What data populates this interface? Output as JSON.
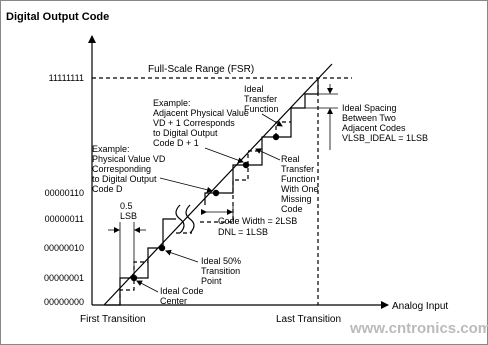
{
  "axis": {
    "y_title": "Digital Output Code",
    "x_title": "Analog Input",
    "y_codes": [
      "11111111",
      "00000110",
      "00000011",
      "00000010",
      "00000001",
      "00000000"
    ],
    "first_transition": "First Transition",
    "last_transition": "Last Transition"
  },
  "annotations": {
    "fsr": "Full-Scale Range (FSR)",
    "half_lsb": [
      "0.5",
      "LSB"
    ],
    "example_vd": [
      "Example:",
      "Physical Value VD",
      "Corresponding",
      "to Digital Output",
      "Code D"
    ],
    "example_vd1": [
      "Example:",
      "Adjacent Physical Value",
      "VD + 1 Corresponds",
      "to Digital Output",
      "Code D + 1"
    ],
    "ideal_tf": [
      "Ideal",
      "Transfer",
      "Function"
    ],
    "real_tf": [
      "Real",
      "Transfer",
      "Function",
      "With One",
      "Missing",
      "Code"
    ],
    "ideal_spacing": [
      "Ideal Spacing",
      "Between Two",
      "Adjacent Codes",
      "VLSB_IDEAL = 1LSB"
    ],
    "code_width": [
      "Code Width = 2LSB",
      "DNL = 1LSB"
    ],
    "transition_point": [
      "Ideal 50%",
      "Transition",
      "Point"
    ],
    "code_center": [
      "Ideal Code",
      "Center"
    ]
  },
  "watermark": "www.cntronics.com"
}
